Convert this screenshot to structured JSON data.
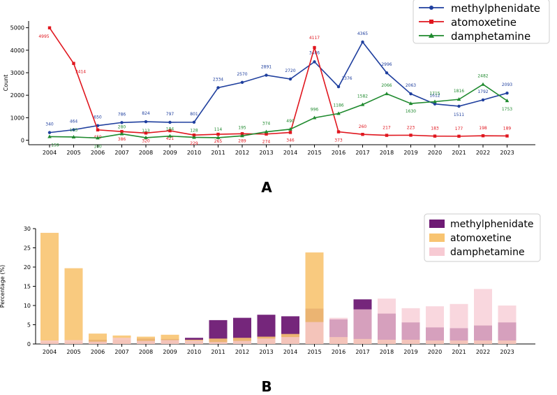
{
  "chart_data": [
    {
      "type": "line",
      "panel_label": "A",
      "ylabel": "Count",
      "ylim": [
        -200,
        5300
      ],
      "yticks": [
        0,
        1000,
        2000,
        3000,
        4000,
        5000
      ],
      "x": [
        "2004",
        "2005",
        "2006",
        "2007",
        "2008",
        "2009",
        "2010",
        "2011",
        "2012",
        "2013",
        "2014",
        "2015",
        "2016",
        "2017",
        "2018",
        "2019",
        "2020",
        "2021",
        "2022",
        "2023"
      ],
      "legend_position": "top-right",
      "series": [
        {
          "name": "methylphenidate",
          "color": "#1f3f9e",
          "marker": "circle",
          "values": [
            340,
            464,
            650,
            786,
            824,
            797,
            801,
            2334,
            2570,
            2891,
            2720,
            3486,
            2376,
            4365,
            2996,
            2063,
            1612,
            1511,
            1792,
            2093
          ]
        },
        {
          "name": "atomoxetine",
          "color": "#e0161e",
          "marker": "square",
          "values": [
            4995,
            3414,
            459,
            386,
            320,
            421,
            229,
            265,
            289,
            274,
            346,
            4117,
            373,
            260,
            217,
            223,
            183,
            177,
            198,
            189
          ]
        },
        {
          "name": "damphetamine",
          "color": "#1f8a2e",
          "marker": "triangle",
          "values": [
            159,
            143,
            100,
            280,
            113,
            184,
            128,
            114,
            195,
            374,
            490,
            996,
            1186,
            1582,
            2066,
            1630,
            1715,
            1816,
            2482,
            1753
          ]
        }
      ]
    },
    {
      "type": "bar",
      "panel_label": "B",
      "ylabel": "Percentage (%)",
      "ylim": [
        0,
        30
      ],
      "yticks": [
        0,
        5,
        10,
        15,
        20,
        25,
        30
      ],
      "categories": [
        "2004",
        "2005",
        "2006",
        "2007",
        "2008",
        "2009",
        "2010",
        "2011",
        "2012",
        "2013",
        "2014",
        "2015",
        "2016",
        "2017",
        "2018",
        "2019",
        "2020",
        "2021",
        "2022",
        "2023"
      ],
      "legend_position": "top-right",
      "series": [
        {
          "name": "methylphenidate",
          "color": "#6e1a74",
          "values": [
            0.4,
            0.5,
            1.1,
            1.1,
            1.4,
            1.3,
            1.6,
            6.2,
            6.8,
            7.6,
            7.2,
            9.2,
            6.4,
            11.6,
            7.9,
            5.6,
            4.3,
            4.1,
            4.8,
            5.6
          ]
        },
        {
          "name": "atomoxetine",
          "color": "#f8c471",
          "values": [
            28.9,
            19.7,
            2.7,
            2.2,
            1.9,
            2.4,
            1.1,
            1.4,
            1.6,
            1.9,
            2.6,
            23.8,
            1.8,
            1.3,
            1.1,
            1.1,
            0.9,
            0.9,
            0.9,
            0.9
          ]
        },
        {
          "name": "damphetamine",
          "color": "#f7cad3",
          "values": [
            0.9,
            1.0,
            0.6,
            1.6,
            0.8,
            1.0,
            0.9,
            0.5,
            0.8,
            1.4,
            1.8,
            5.7,
            6.8,
            9.0,
            11.8,
            9.3,
            9.8,
            10.4,
            14.3,
            10.0
          ]
        }
      ]
    }
  ]
}
